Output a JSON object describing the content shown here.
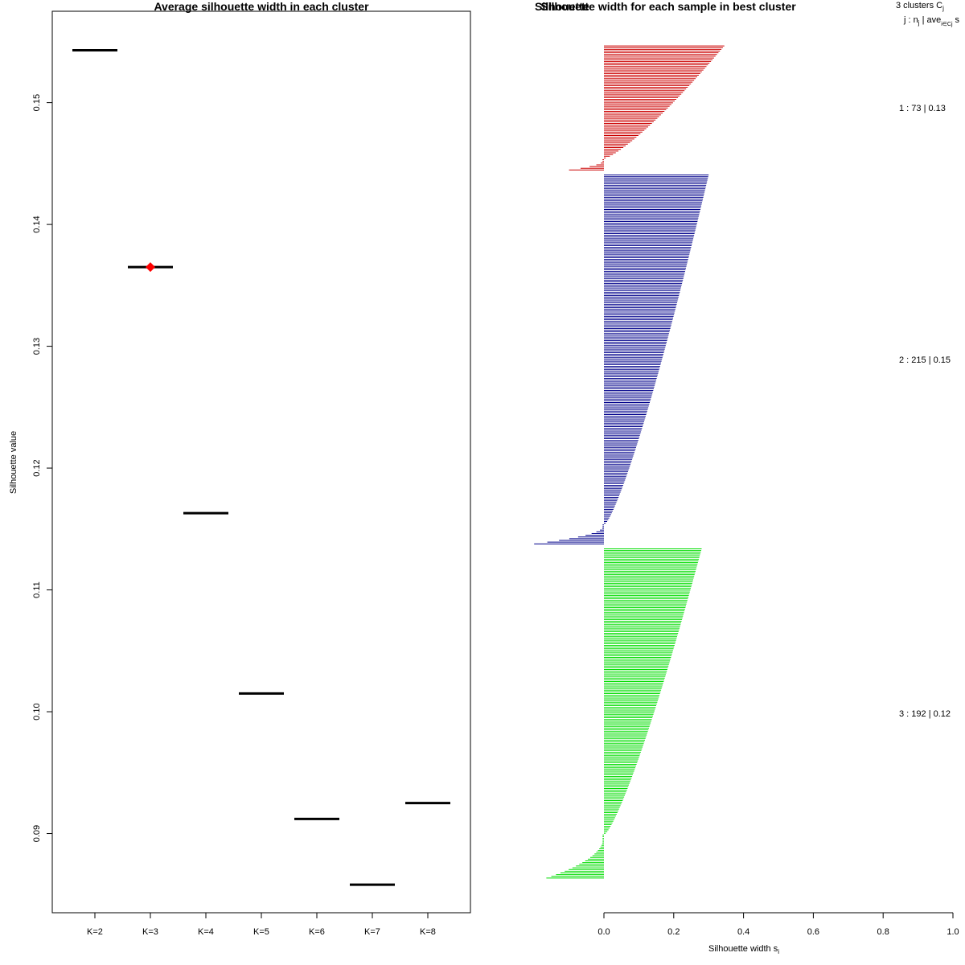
{
  "chart_data": [
    {
      "type": "scatter",
      "title": "Average silhouette width in each cluster",
      "ylabel": "Silhouette value",
      "xlabel": "",
      "ylim": [
        0.0835,
        0.1575
      ],
      "categories": [
        "K=2",
        "K=3",
        "K=4",
        "K=5",
        "K=6",
        "K=7",
        "K=8"
      ],
      "values": [
        0.1543,
        0.1365,
        0.1163,
        0.1015,
        0.0912,
        0.0858,
        0.0925
      ],
      "best": "K=3",
      "best_color": "#ff0000",
      "mark_color": "#000000",
      "yticks": [
        0.09,
        0.1,
        0.11,
        0.12,
        0.13,
        0.14,
        0.15
      ],
      "ytick_labels": [
        "0.09",
        "0.10",
        "0.11",
        "0.12",
        "0.13",
        "0.14",
        "0.15"
      ],
      "grid": false
    },
    {
      "type": "bar",
      "orientation": "horizontal",
      "title": "Silhouette width for each sample in best cluster",
      "overlapped_title": "Silhouette",
      "xlabel": "Silhouette width s",
      "xlabel_subscript": "i",
      "xlim": [
        0.0,
        1.0
      ],
      "xticks": [
        0.0,
        0.2,
        0.4,
        0.6,
        0.8,
        1.0
      ],
      "xtick_labels": [
        "0.0",
        "0.2",
        "0.4",
        "0.6",
        "0.8",
        "1.0"
      ],
      "legend_header": {
        "line1_prefix": "3 clusters C",
        "line1_sub": "j",
        "line2_prefix": "j :  n",
        "line2_sub1": "j",
        "line2_mid": " | ave",
        "line2_sub2": "i∈Cj",
        "line2_suffix": "  s"
      },
      "series": [
        {
          "name": "1",
          "label": "1 :   73  |  0.13",
          "n": 73,
          "avg": 0.13,
          "color": "#cc0000",
          "max": 0.345,
          "pos_min": 0.005,
          "n_negative": 7,
          "neg_min": -0.1
        },
        {
          "name": "2",
          "label": "2 :  215  |  0.15",
          "n": 215,
          "avg": 0.15,
          "color": "#00008b",
          "max": 0.3,
          "pos_min": 0.005,
          "n_negative": 12,
          "neg_min": -0.2
        },
        {
          "name": "3",
          "label": "3 :  192  |  0.12",
          "n": 192,
          "avg": 0.12,
          "color": "#00dd00",
          "max": 0.28,
          "pos_min": 0.005,
          "n_negative": 26,
          "neg_min": -0.165
        }
      ]
    }
  ]
}
